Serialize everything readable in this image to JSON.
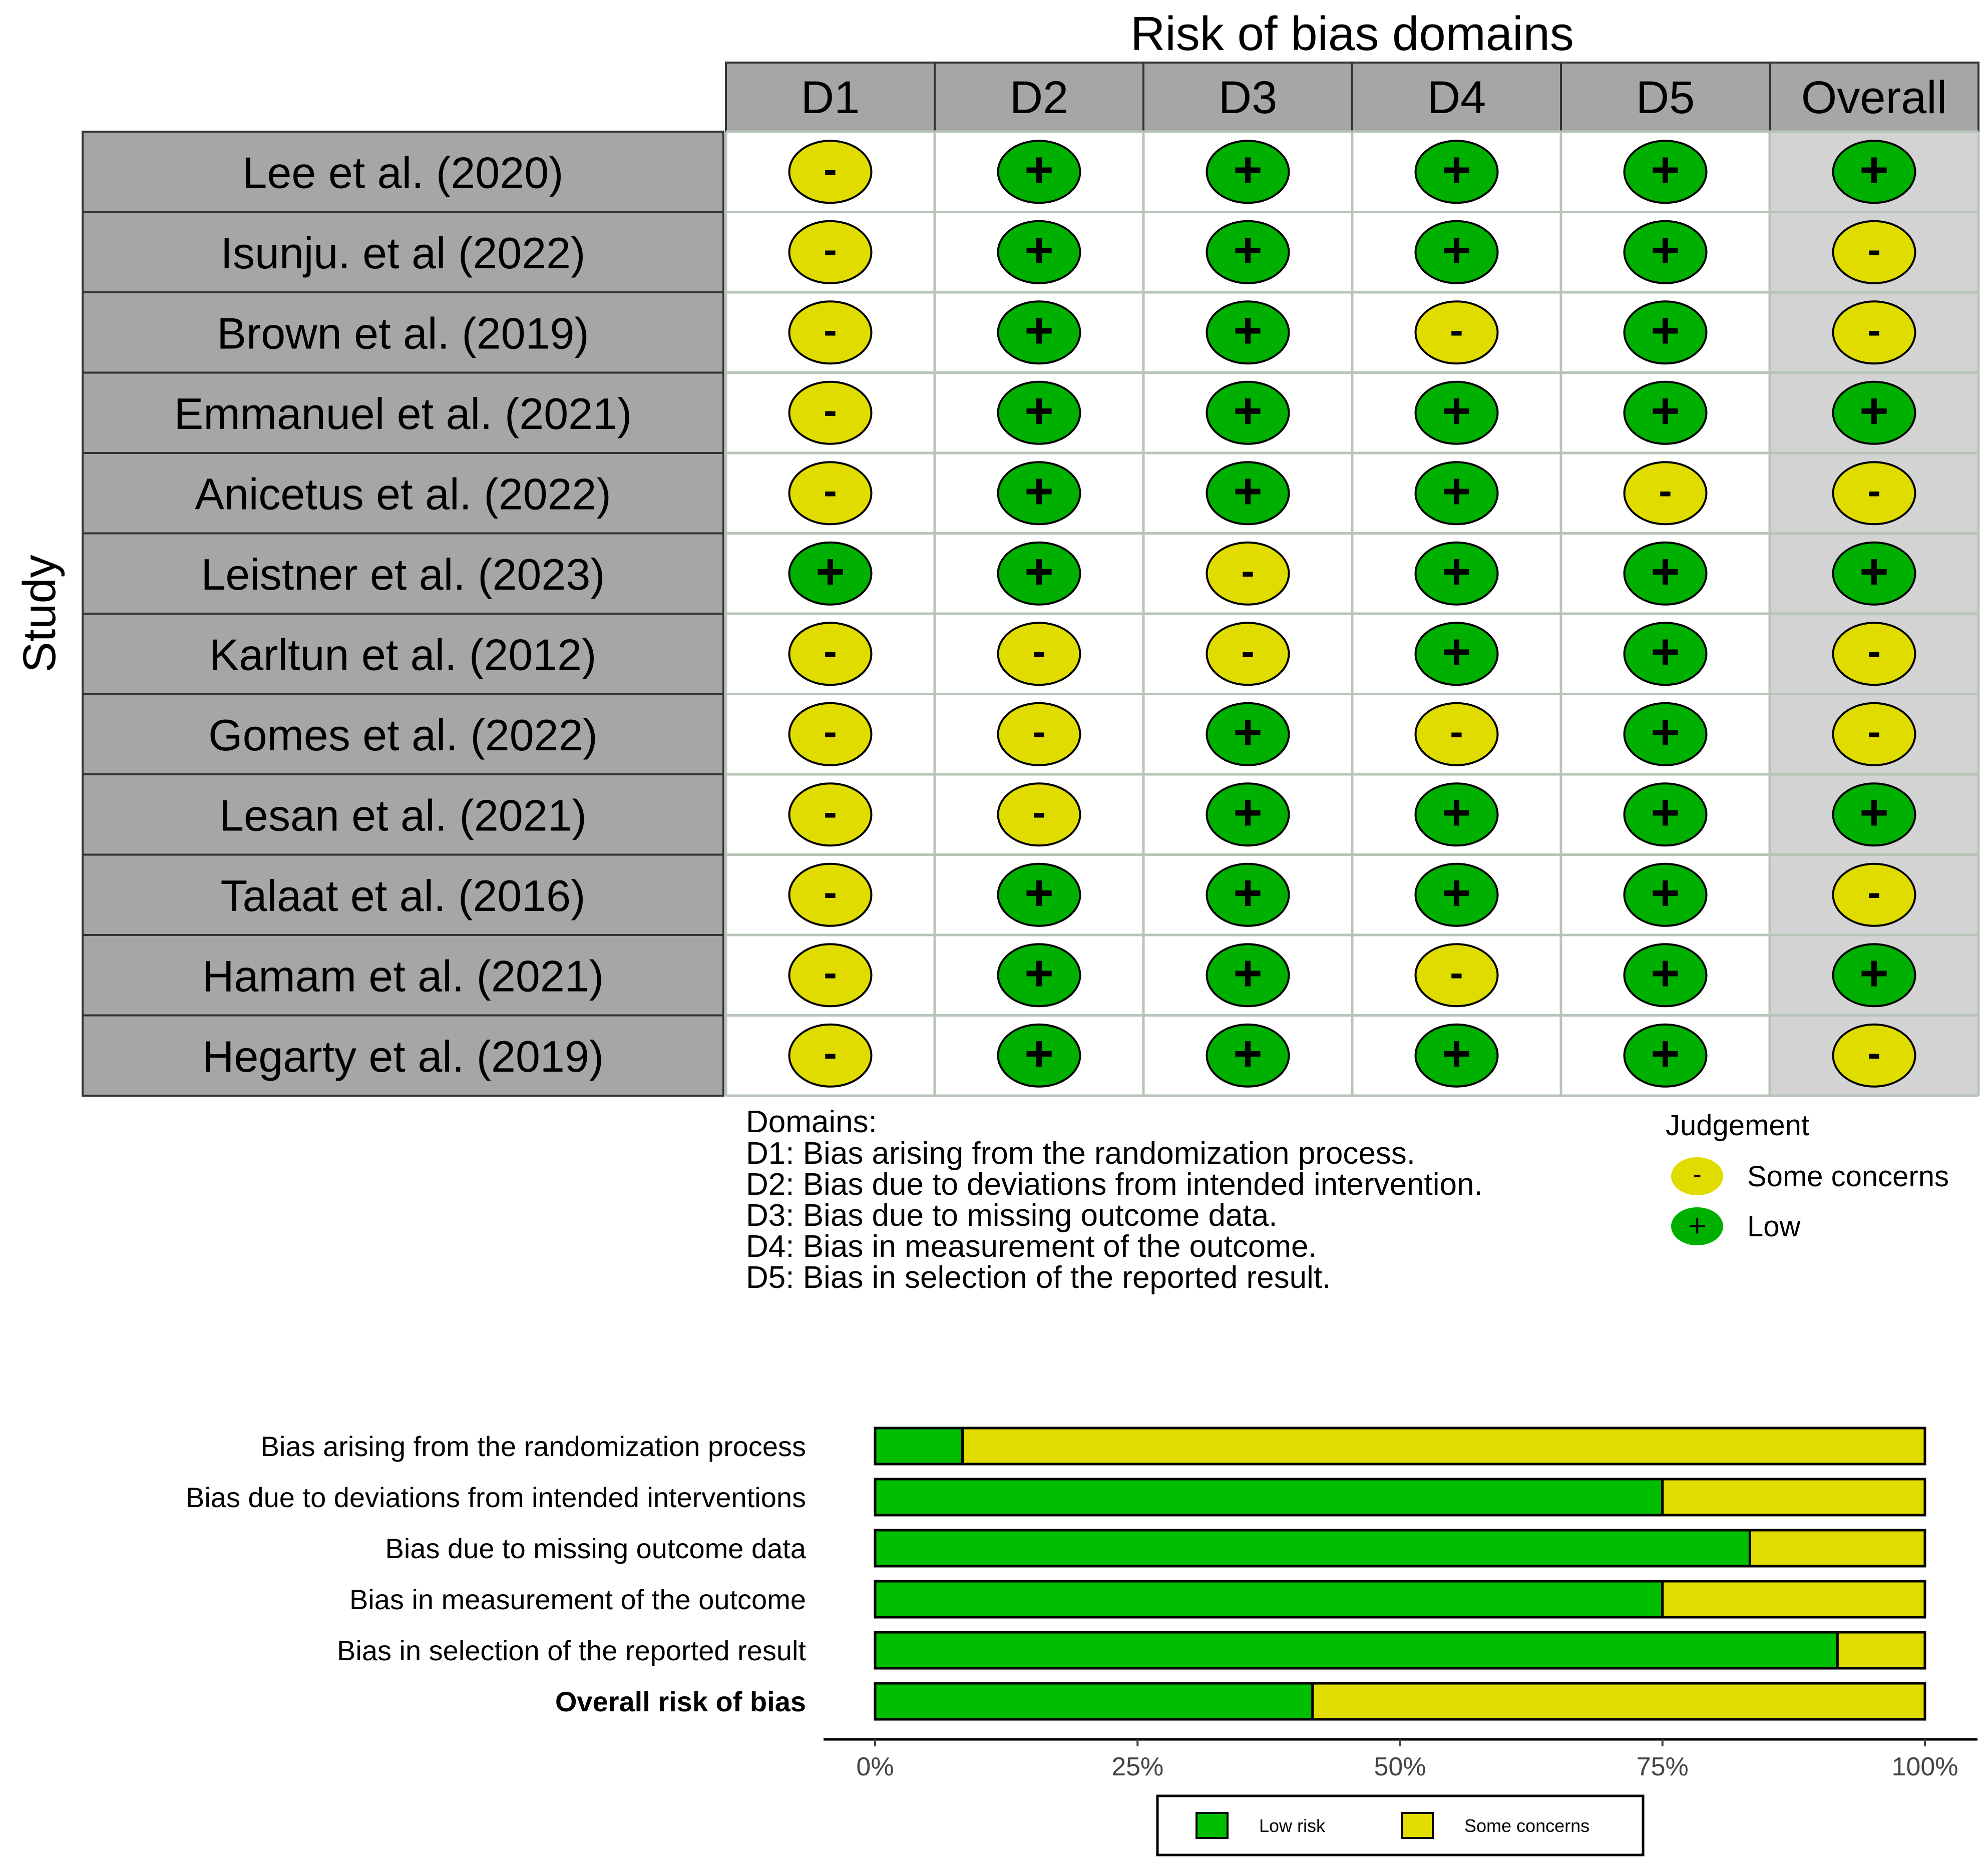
{
  "chart_data": [
    {
      "type": "table",
      "title": "Risk of bias domains",
      "ylabel": "Study",
      "columns": [
        "D1",
        "D2",
        "D3",
        "D4",
        "D5",
        "Overall"
      ],
      "studies": [
        "Lee et al. (2020)",
        "Isunju. et al (2022)",
        "Brown et al. (2019)",
        "Emmanuel et al. (2021)",
        "Anicetus et al. (2022)",
        "Leistner et al. (2023)",
        "Karltun et al. (2012)",
        "Gomes et al. (2022)",
        "Lesan et al. (2021)",
        "Talaat et al. (2016)",
        "Hamam et al. (2021)",
        "Hegarty et al. (2019)"
      ],
      "judgements": [
        [
          "-",
          "+",
          "+",
          "+",
          "+",
          "+"
        ],
        [
          "-",
          "+",
          "+",
          "+",
          "+",
          "-"
        ],
        [
          "-",
          "+",
          "+",
          "-",
          "+",
          "-"
        ],
        [
          "-",
          "+",
          "+",
          "+",
          "+",
          "+"
        ],
        [
          "-",
          "+",
          "+",
          "+",
          "-",
          "-"
        ],
        [
          "+",
          "+",
          "-",
          "+",
          "+",
          "+"
        ],
        [
          "-",
          "-",
          "-",
          "+",
          "+",
          "-"
        ],
        [
          "-",
          "-",
          "+",
          "-",
          "+",
          "-"
        ],
        [
          "-",
          "-",
          "+",
          "+",
          "+",
          "+"
        ],
        [
          "-",
          "+",
          "+",
          "+",
          "+",
          "-"
        ],
        [
          "-",
          "+",
          "+",
          "-",
          "+",
          "+"
        ],
        [
          "-",
          "+",
          "+",
          "+",
          "+",
          "-"
        ]
      ],
      "domains_heading": "Domains:",
      "domains": [
        "D1: Bias arising from the randomization process.",
        "D2: Bias due to deviations from intended intervention.",
        "D3: Bias due to missing outcome data.",
        "D4: Bias in measurement of the outcome.",
        "D5: Bias in selection of the reported result."
      ],
      "legend_title": "Judgement",
      "legend": [
        {
          "symbol": "-",
          "label": "Some concerns",
          "color": "#e0dc00"
        },
        {
          "symbol": "+",
          "label": "Low",
          "color": "#00b000"
        }
      ]
    },
    {
      "type": "bar",
      "stacked": true,
      "orientation": "horizontal",
      "categories": [
        "Bias arising from the randomization process",
        "Bias due to deviations from intended interventions",
        "Bias due to missing outcome data",
        "Bias in measurement of the outcome",
        "Bias in selection of the reported result",
        "Overall risk of bias"
      ],
      "series": [
        {
          "name": "Low risk",
          "color": "#00bf00",
          "values": [
            8.33,
            75.0,
            83.33,
            75.0,
            91.67,
            41.67
          ]
        },
        {
          "name": "Some concerns",
          "color": "#e3dc00",
          "values": [
            91.67,
            25.0,
            16.67,
            25.0,
            8.33,
            58.33
          ]
        }
      ],
      "xlim": [
        0,
        100
      ],
      "xticks": [
        "0%",
        "25%",
        "50%",
        "75%",
        "100%"
      ],
      "legend_position": "bottom"
    }
  ]
}
